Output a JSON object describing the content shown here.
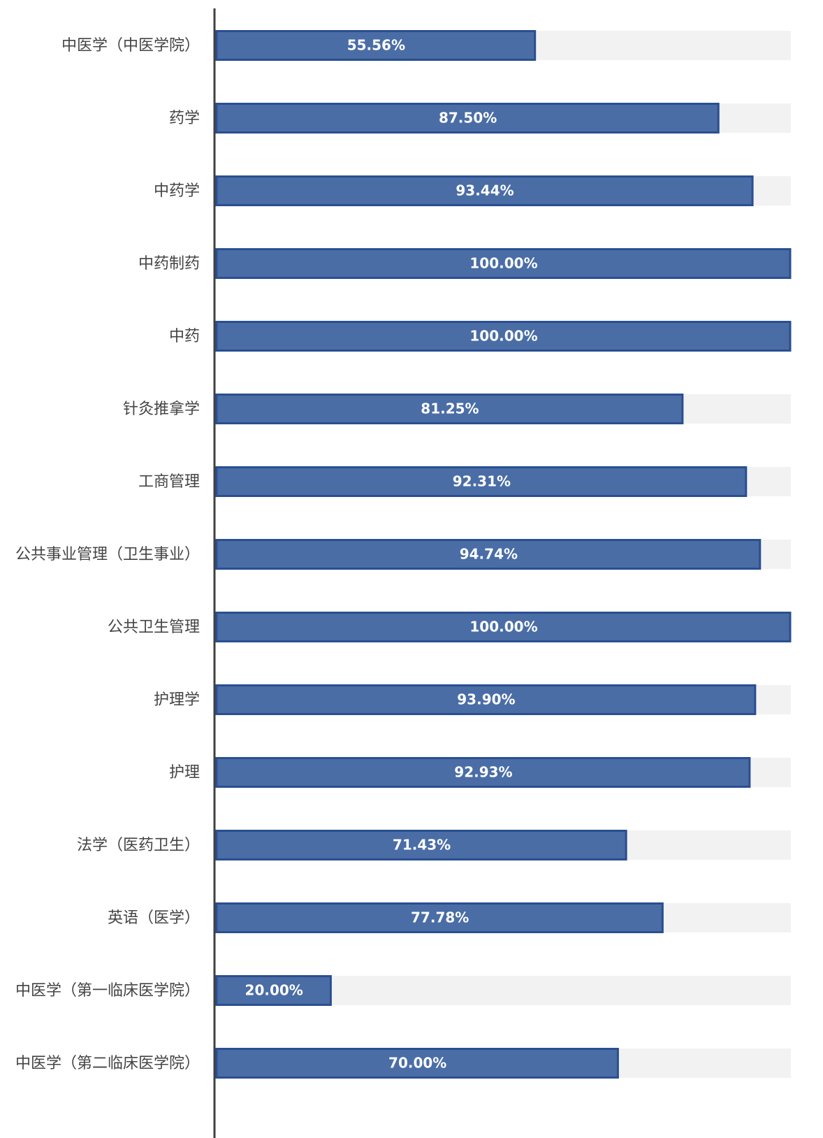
{
  "chart_data": {
    "type": "bar",
    "orientation": "horizontal",
    "categories": [
      "中医学（中医学院）",
      "药学",
      "中药学",
      "中药制药",
      "中药",
      "针灸推拿学",
      "工商管理",
      "公共事业管理（卫生事业）",
      "公共卫生管理",
      "护理学",
      "护理",
      "法学（医药卫生）",
      "英语（医学）",
      "中医学（第一临床医学院）",
      "中医学（第二临床医学院）"
    ],
    "values": [
      55.56,
      87.5,
      93.44,
      100,
      100,
      81.25,
      92.31,
      94.74,
      100,
      93.9,
      92.93,
      71.43,
      77.78,
      20,
      70
    ],
    "value_labels": [
      "55.56%",
      "87.50%",
      "93.44%",
      "100.00%",
      "100.00%",
      "81.25%",
      "92.31%",
      "94.74%",
      "100.00%",
      "93.90%",
      "92.93%",
      "71.43%",
      "77.78%",
      "20.00%",
      "70.00%"
    ],
    "xlim": [
      0,
      100
    ],
    "grid": false,
    "legend": "none",
    "colors": {
      "bar_fill": "#4a6da6",
      "bar_stroke": "#2a4f91",
      "track": "#f2f2f2",
      "value_text": "#ffffff",
      "axis": "#404040"
    }
  }
}
